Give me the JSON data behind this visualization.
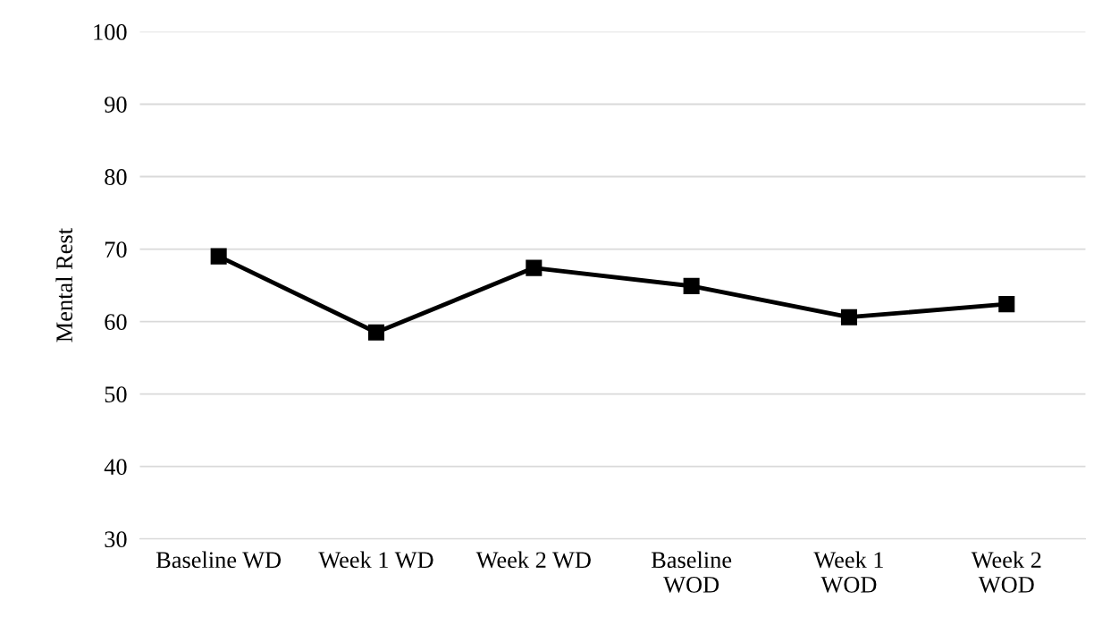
{
  "chart_data": {
    "type": "line",
    "ylabel": "Mental Rest",
    "categories": [
      "Baseline WD",
      "Week 1 WD",
      "Week 2 WD",
      "Baseline\nWOD",
      "Week 1\nWOD",
      "Week 2\nWOD"
    ],
    "series": [
      {
        "color": "#000000",
        "values": [
          69.0,
          58.5,
          67.4,
          64.9,
          60.6,
          62.4
        ]
      }
    ],
    "ylim": [
      30,
      100
    ],
    "yticks": [
      30,
      40,
      50,
      60,
      70,
      80,
      90,
      100
    ],
    "grid": "y",
    "marker": "square",
    "line_style": "solid"
  }
}
